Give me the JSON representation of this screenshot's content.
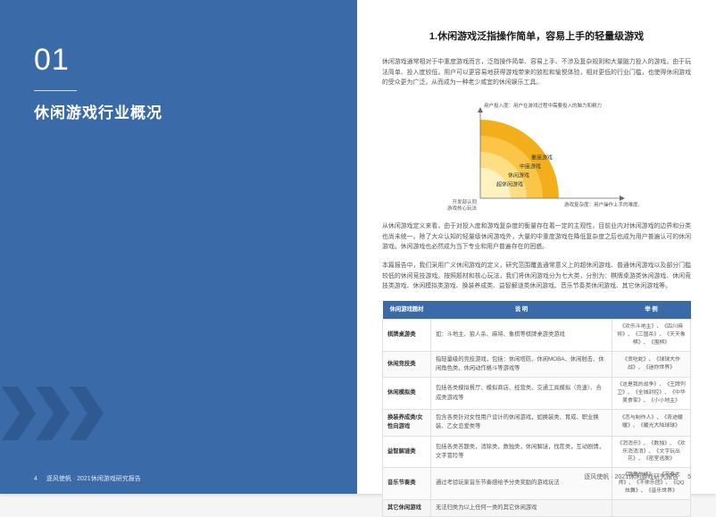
{
  "left": {
    "number": "01",
    "title": "休闲游戏行业概况",
    "footer_page": "4",
    "footer_text": "逐风使帆 · 2021休闲游戏研究报告",
    "bg_color": "#3b6aa8",
    "chevron_fill": "#2f5991"
  },
  "right": {
    "title": "1.休闲游戏泛指操作简单，容易上手的轻量级游戏",
    "para1": "休闲游戏通常相对于中重度游戏而言，泛指操作简单、容易上手、不涉及复杂规则和大量脑力投入的游戏。由于玩法简单、投入度较低，用户可以更容易地获得游戏带来的放松和愉悦体验，相对更低的行业门槛，也使得休闲游戏的受众更为广泛，从而成为一种老少咸宜的休闲娱乐工具。",
    "para2": "从休闲游戏定义来看，由于对投入度和游戏复杂度的衡量存在着一定的主观性，目前业内对休闲游戏的边界和分类也尚未统一。除了大众认知的轻量级休闲游戏外，大量的中重度游戏在降低复杂度之后也成为用户普遍认可的休闲游戏。休闲游戏也必然成为当下专业和用户普遍存在的困惑。",
    "para3": "本篇报告中，我们采用广义休闲游戏的定义，研究范围覆盖通常意义上的超休闲游戏、普通休闲游戏以及部分门槛较低的休闲竞技游戏。按照题材和核心玩法，我们将休闲游戏分为七大类，分别为：棋牌桌游类休闲游戏、休闲竞技类游戏、休闲模拟类游戏、换装养成类、益智解谜类休闲游戏、音乐节奏类休闲游戏、其它休闲游戏等。",
    "chart": {
      "top_label": "用户投入度：用户在游戏过程中需要投入的脑力和精力",
      "bottom_label": "游戏复杂度：用户操作上手的难度，游戏玩法设备要求",
      "corner_label1": "开发部认同",
      "corner_label2": "游戏核心玩法",
      "rings": [
        {
          "label": "重度游戏",
          "color": "#f3ae1b"
        },
        {
          "label": "中度游戏",
          "color": "#fbc648"
        },
        {
          "label": "休闲游戏",
          "color": "#fede82"
        },
        {
          "label": "超休闲游戏",
          "color": "#fff2c0"
        }
      ],
      "axis_color": "#6a6a6a",
      "label_font": 5.5
    },
    "table": {
      "header_bg": "#3b6aa8",
      "columns": [
        "休闲游戏题材",
        "说 明",
        "举 例"
      ],
      "rows": [
        {
          "cat": "棋牌桌游类",
          "desc": "如：斗地主、狼人杀、麻将、象棋等棋牌桌游类游戏",
          "ex": "《欢乐斗地主》、《四川麻将》、《三国杀》、《天天象棋》、《围棋》"
        },
        {
          "cat": "休闲竞技类",
          "desc": "指轻量级的竞技游戏，包括：休闲塔防、休闲MOBA、休闲射击、休闲角色类、休闲动作格斗等游戏等",
          "ex": "《贪吃蛇》、《球球大作战》、《迷你世界》"
        },
        {
          "cat": "休闲模拟类",
          "desc": "包括各类模拟餐厅、模拟商店、经营类、交通工具模拟（竞速）、合成类游戏等",
          "ex": "《这是我的战争》、《王牌列卫》、《全城封控》、《中华美食家》、《小小地主》"
        },
        {
          "cat": "换装养成类/女性向游戏",
          "desc": "包含各类针对女性用户设计的休闲游戏，如换装类、育成、职业换装、乙女恋爱类等",
          "ex": "《恋与制作人》、《奇迹暖暖》、《暖光大陆球球》"
        },
        {
          "cat": "益智解谜类",
          "desc": "包括各类答题类，消除类，数独类，休闲解谜，找茬类，互动剧情，文字冒险等",
          "ex": "《消消乐》、《数独》、《欢乐消消消》、《文字玩出花》、《密室逃脱》"
        },
        {
          "cat": "音乐节奏类",
          "desc": "通过考验玩家音乐节奏感给予分类奖励的游戏玩法",
          "ex": "《跳舞的线》、《节奏大师》、《不休乐团》、《QQ炫舞》、《音乐世界》"
        },
        {
          "cat": "其它休闲游戏",
          "desc": "无法归类为以上任何一类的其它休闲游戏",
          "ex": ""
        }
      ]
    },
    "footer_text": "逐风使帆 · 2021休闲游戏研究报告",
    "footer_page": "5"
  }
}
